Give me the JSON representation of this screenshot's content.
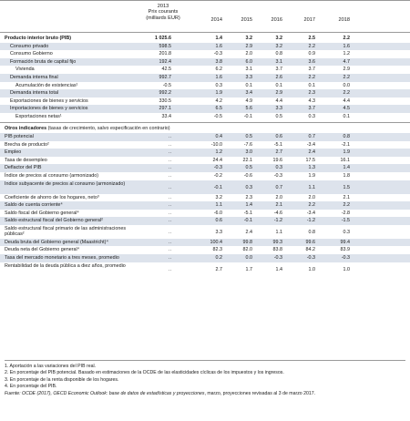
{
  "header": {
    "base_year": "2013",
    "base_unit_1": "Prix courants",
    "base_unit_2": "(milliards EUR)",
    "years": [
      "2014",
      "2015",
      "2016",
      "2017",
      "2018"
    ]
  },
  "section1": [
    {
      "label": "Producto interior bruto (PIB)",
      "bold": true,
      "indent": 0,
      "shade": false,
      "vals": [
        "1 025.6",
        "1.4",
        "3.2",
        "3.2",
        "2.5",
        "2.2"
      ]
    },
    {
      "label": "Consumo privado",
      "indent": 1,
      "shade": true,
      "vals": [
        "598.5",
        "1.6",
        "2.9",
        "3.2",
        "2.2",
        "1.6"
      ]
    },
    {
      "label": "Consumo Gobierno",
      "indent": 1,
      "shade": false,
      "vals": [
        "201.8",
        "-0.3",
        "2.0",
        "0.8",
        "0.9",
        "1.2"
      ]
    },
    {
      "label": "Formación bruta de capital fijo",
      "indent": 1,
      "shade": true,
      "vals": [
        "192.4",
        "3.8",
        "6.0",
        "3.1",
        "3.6",
        "4.7"
      ]
    },
    {
      "label": "Vivienda",
      "indent": 2,
      "shade": false,
      "vals": [
        "42.5",
        "6.2",
        "3.1",
        "3.7",
        "3.7",
        "2.9"
      ]
    },
    {
      "label": "Demanda interna final",
      "indent": 1,
      "shade": true,
      "vals": [
        "992.7",
        "1.6",
        "3.3",
        "2.6",
        "2.2",
        "2.2"
      ]
    },
    {
      "label": "Acumulación de existencias¹",
      "indent": 2,
      "shade": false,
      "vals": [
        "-0.5",
        "0.3",
        "0.1",
        "0.1",
        "0.1",
        "0.0"
      ]
    },
    {
      "label": "Demanda interna total",
      "indent": 1,
      "shade": true,
      "vals": [
        "992.2",
        "1.9",
        "3.4",
        "2.9",
        "2.3",
        "2.2"
      ]
    },
    {
      "label": "Exportaciones de bienes y servicios",
      "indent": 1,
      "shade": false,
      "vals": [
        "330.5",
        "4.2",
        "4.9",
        "4.4",
        "4.3",
        "4.4"
      ]
    },
    {
      "label": "Importaciones de bienes y servicios",
      "indent": 1,
      "shade": true,
      "vals": [
        "297.1",
        "6.5",
        "5.6",
        "3.3",
        "3.7",
        "4.5"
      ]
    },
    {
      "label": "Exportaciones netas¹",
      "indent": 2,
      "shade": false,
      "vals": [
        "33.4",
        "-0.5",
        "-0.1",
        "0.5",
        "0.3",
        "0.1"
      ]
    }
  ],
  "indicators_title_bold": "Otros indicadores",
  "indicators_title_rest": " (tasas de crecimiento, salvo especificación en contrario)",
  "section2": [
    {
      "label": "PIB potencial",
      "shade": true,
      "vals": [
        "..",
        "0.4",
        "0.5",
        "0.6",
        "0.7",
        "0.8"
      ]
    },
    {
      "label": "Brecha de producto²",
      "shade": false,
      "vals": [
        "..",
        "-10.0",
        "-7.6",
        "-5.1",
        "-3.4",
        "-2.1"
      ]
    },
    {
      "label": "Empleo",
      "shade": true,
      "vals": [
        "..",
        "1.2",
        "3.0",
        "2.7",
        "2.4",
        "1.9"
      ]
    },
    {
      "label": "Tasa de desempleo",
      "shade": false,
      "vals": [
        "..",
        "24.4",
        "22.1",
        "19.6",
        "17.5",
        "16.1"
      ]
    },
    {
      "label": "Deflactor del PIB",
      "shade": true,
      "vals": [
        "..",
        "-0.3",
        "0.5",
        "0.3",
        "1.3",
        "1.4"
      ]
    },
    {
      "label": "Índice de precios al consumo (armonizado)",
      "shade": false,
      "vals": [
        "..",
        "-0.2",
        "-0.6",
        "-0.3",
        "1.9",
        "1.8"
      ]
    },
    {
      "label": "Índice subyacente de precios al consumo (armonizado)",
      "shade": true,
      "tall": true,
      "vals": [
        "..",
        "-0.1",
        "0.3",
        "0.7",
        "1.1",
        "1.5"
      ]
    },
    {
      "label": "Coeficiente de ahorro de los hogares, neto³",
      "shade": false,
      "vals": [
        "..",
        "3.2",
        "2.3",
        "2.0",
        "2.0",
        "2.1"
      ]
    },
    {
      "label": "Saldo de cuenta corriente⁴",
      "shade": true,
      "vals": [
        "..",
        "1.1",
        "1.4",
        "2.1",
        "2.2",
        "2.2"
      ]
    },
    {
      "label": "Saldo fiscal del Gobierno general⁴",
      "shade": false,
      "vals": [
        "..",
        "-6.0",
        "-5.1",
        "-4.6",
        "-3.4",
        "-2.8"
      ]
    },
    {
      "label": "Saldo estructural fiscal del Gobierno general²",
      "shade": true,
      "vals": [
        "..",
        "0.6",
        "-0.1",
        "-1.2",
        "-1.2",
        "-1.5"
      ]
    },
    {
      "label": "Saldo estructural fiscal primario de las administraciones públicas²",
      "shade": false,
      "tall": true,
      "vals": [
        "..",
        "3.3",
        "2.4",
        "1.1",
        "0.8",
        "0.3"
      ]
    },
    {
      "label": "Deuda bruta del Gobierno general (Maastricht)⁴",
      "shade": true,
      "vals": [
        "..",
        "100.4",
        "99.8",
        "99.3",
        "99.6",
        "99.4"
      ]
    },
    {
      "label": "Deuda neta del Gobierno general⁴",
      "shade": false,
      "vals": [
        "..",
        "82.3",
        "82.0",
        "83.8",
        "84.2",
        "83.9"
      ]
    },
    {
      "label": "Tasa del mercado monetario a tres meses, promedio",
      "shade": true,
      "vals": [
        "..",
        "0.2",
        "0.0",
        "-0.3",
        "-0.3",
        "-0.3"
      ]
    },
    {
      "label": "Rentabilidad de la deuda pública a diez años, promedio",
      "shade": false,
      "tall": true,
      "vals": [
        "..",
        "2.7",
        "1.7",
        "1.4",
        "1.0",
        "1.0"
      ]
    }
  ],
  "footnotes": [
    "1.  Aportación a las variaciones del PIB real.",
    "2.  En porcentaje del PIB potencial. Basado en estimaciones de la OCDE de las elasticidades cíclicas de los impuestos y los ingresos.",
    "3.  En porcentaje de la renta disponible de los hogares.",
    "4.  En porcentaje del PIB."
  ],
  "source_prefix": "Fuente: OCDE (2017), OECD ",
  "source_italic": "Economic Outlook: base de datos de estadísticas y proyecciones",
  "source_suffix": ", marzo, proyecciones revisadas al 3 de marzo 2017."
}
